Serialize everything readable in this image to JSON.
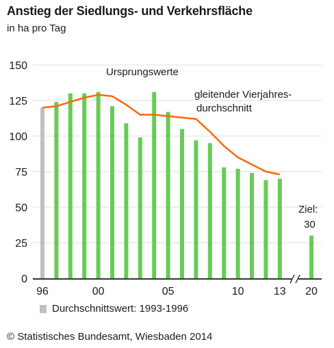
{
  "title": "Anstieg der Siedlungs- und Verkehrsfläche",
  "subtitle": "in ha pro Tag",
  "colors": {
    "bars": "#66cc55",
    "line": "#ff6600",
    "average_bar": "#c0c0c0",
    "grid": "#dddddd"
  },
  "chart_data": {
    "type": "bar",
    "title": "Anstieg der Siedlungs- und Verkehrsfläche",
    "ylabel": "in ha pro Tag",
    "ylim": [
      0,
      150
    ],
    "yticks": [
      0,
      25,
      50,
      75,
      100,
      125,
      150
    ],
    "grid": true,
    "xtick_labels": [
      "96",
      "00",
      "05",
      "10",
      "13",
      "20"
    ],
    "average_bar": {
      "label": "Durchschnittswert: 1993-1996",
      "x": 1996,
      "value": 120
    },
    "series": [
      {
        "name": "Ursprungswerte",
        "type": "bar",
        "x": [
          1997,
          1998,
          1999,
          2000,
          2001,
          2002,
          2003,
          2004,
          2005,
          2006,
          2007,
          2008,
          2009,
          2010,
          2011,
          2012,
          2013
        ],
        "values": [
          124,
          130,
          130,
          131,
          121,
          109,
          99,
          131,
          117,
          105,
          97,
          95,
          78,
          77,
          74,
          69,
          70
        ]
      },
      {
        "name": "gleitender Vierjahres-durchschnitt",
        "type": "line",
        "x": [
          1996,
          1997,
          1998,
          1999,
          2000,
          2001,
          2002,
          2003,
          2004,
          2005,
          2006,
          2007,
          2008,
          2009,
          2010,
          2011,
          2012,
          2013
        ],
        "values": [
          120,
          121,
          124,
          127,
          129,
          128,
          122,
          115,
          115,
          114,
          113,
          112,
          103,
          93,
          85,
          80,
          75,
          73
        ]
      },
      {
        "name": "Ziel",
        "type": "bar",
        "x": [
          2020
        ],
        "values": [
          30
        ]
      }
    ]
  },
  "annotations": {
    "ursprung": "Ursprungswerte",
    "gleitend_line1": "gleitender Vierjahres-",
    "gleitend_line2": "durchschnitt",
    "ziel_line1": "Ziel:",
    "ziel_line2": "30"
  },
  "legend": {
    "label": "Durchschnittswert: 1993-1996"
  },
  "source": "© Statistisches Bundesamt, Wiesbaden 2014"
}
